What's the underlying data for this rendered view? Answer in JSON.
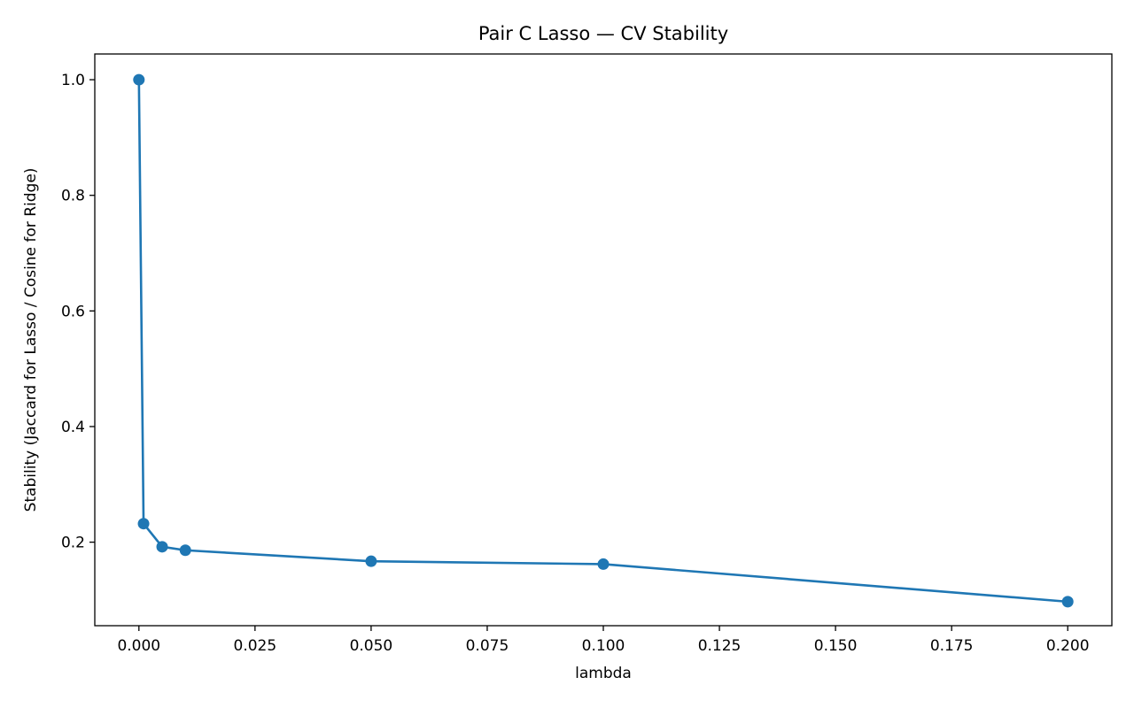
{
  "chart_data": {
    "type": "line",
    "title": "Pair C Lasso — CV Stability",
    "xlabel": "lambda",
    "ylabel": "Stability (Jaccard for Lasso / Cosine for Ridge)",
    "xlim": [
      -0.0095,
      0.2095
    ],
    "ylim": [
      0.0555,
      1.0445
    ],
    "x_ticks": [
      0.0,
      0.025,
      0.05,
      0.075,
      0.1,
      0.125,
      0.15,
      0.175,
      0.2
    ],
    "x_tick_labels": [
      "0.000",
      "0.025",
      "0.050",
      "0.075",
      "0.100",
      "0.125",
      "0.150",
      "0.175",
      "0.200"
    ],
    "y_ticks": [
      0.2,
      0.4,
      0.6,
      0.8,
      1.0
    ],
    "y_tick_labels": [
      "0.2",
      "0.4",
      "0.6",
      "0.8",
      "1.0"
    ],
    "grid": false,
    "legend": "none",
    "series": [
      {
        "x": [
          0.0,
          0.001,
          0.005,
          0.01,
          0.05,
          0.1,
          0.2
        ],
        "y": [
          1.0,
          0.232,
          0.192,
          0.186,
          0.167,
          0.162,
          0.097
        ],
        "color": "#1f77b4",
        "marker": "circle"
      }
    ]
  }
}
